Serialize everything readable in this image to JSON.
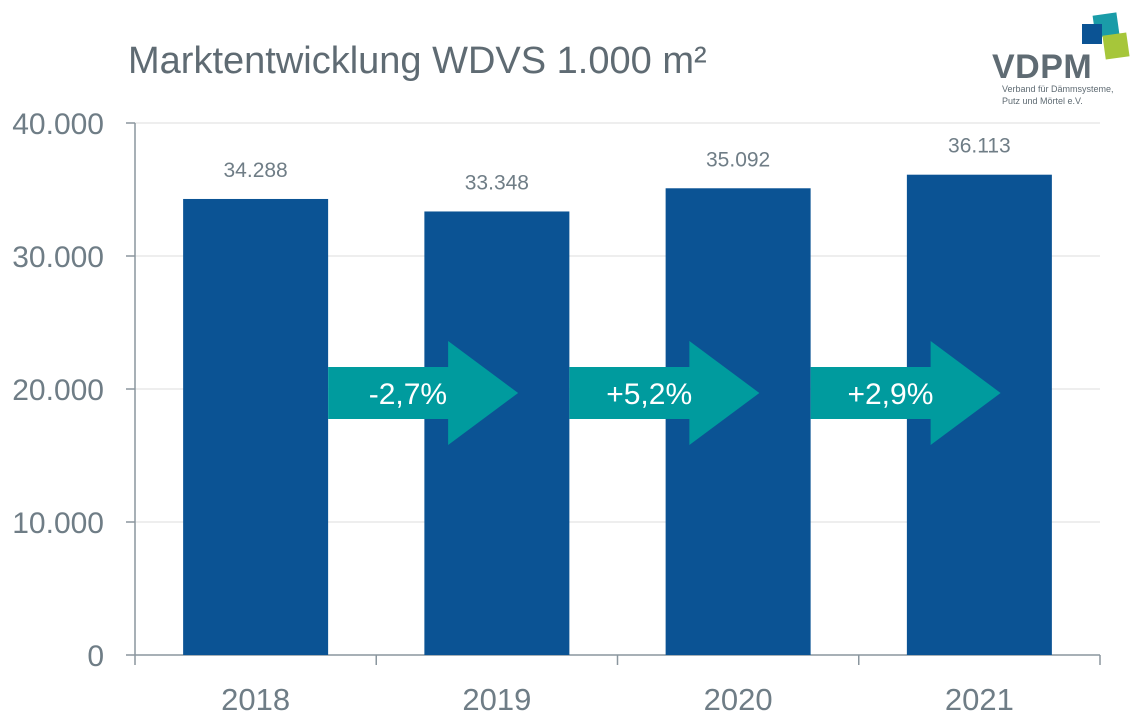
{
  "chart_data": {
    "type": "bar",
    "title": "Marktentwicklung WDVS 1.000 m²",
    "categories": [
      "2018",
      "2019",
      "2020",
      "2021"
    ],
    "values": [
      34288,
      33348,
      35092,
      36113
    ],
    "value_labels": [
      "34.288",
      "33.348",
      "35.092",
      "36.113"
    ],
    "ylim": [
      0,
      40000
    ],
    "yticks": [
      0,
      10000,
      20000,
      30000,
      40000
    ],
    "ytick_labels": [
      "0",
      "10.000",
      "20.000",
      "30.000",
      "40.000"
    ],
    "grid": true,
    "legend": "none",
    "annotations": [
      {
        "between": [
          "2018",
          "2019"
        ],
        "text": "-2,7%"
      },
      {
        "between": [
          "2019",
          "2020"
        ],
        "text": "+5,2%"
      },
      {
        "between": [
          "2020",
          "2021"
        ],
        "text": "+2,9%"
      }
    ],
    "colors": {
      "bar": "#0b5394",
      "arrow": "#009b9e",
      "grid": "#dcdcdc",
      "text": "#6f7d86"
    }
  },
  "logo": {
    "name": "VDPM",
    "subtitle_line1": "Verband für Dämmsysteme,",
    "subtitle_line2": "Putz und Mörtel e.V.",
    "colors": [
      "#1a9ca8",
      "#a6c63a",
      "#0b5394"
    ]
  }
}
